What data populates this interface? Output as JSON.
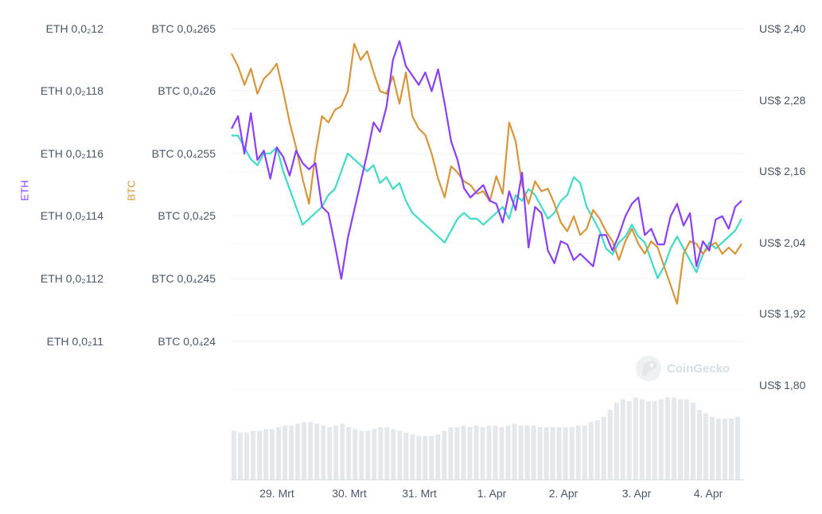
{
  "watermark": "CoinGecko",
  "colors": {
    "eth": "#8a3ffc",
    "btc": "#d9953a",
    "usd": "#3ddbc8",
    "grid": "#eef0f3",
    "volume": "#e4e7eb"
  },
  "chart_data": {
    "type": "line",
    "title": "",
    "axes": {
      "eth": {
        "name": "ETH",
        "ticks": [
          "ETH 0,0₂12",
          "ETH 0,0₂118",
          "ETH 0,0₂116",
          "ETH 0,0₂114",
          "ETH 0,0₂112",
          "ETH 0,0₂11"
        ],
        "ylim": [
          0.0011,
          0.0012
        ]
      },
      "btc": {
        "name": "BTC",
        "ticks": [
          "BTC 0,0₄265",
          "BTC 0,0₄26",
          "BTC 0,0₄255",
          "BTC 0,0₄25",
          "BTC 0,0₄245",
          "BTC 0,0₄24"
        ],
        "ylim": [
          2.4e-05,
          2.65e-05
        ]
      },
      "usd": {
        "ticks": [
          "US$ 2,40",
          "US$ 2,28",
          "US$ 2,16",
          "US$ 2,04",
          "US$ 1,92",
          "US$ 1,80"
        ],
        "ylim": [
          1.8,
          2.4
        ]
      }
    },
    "x_ticks": [
      "29. Mrt",
      "30. Mrt",
      "31. Mrt",
      "1. Apr",
      "2. Apr",
      "3. Apr",
      "4. Apr"
    ],
    "series": [
      {
        "name": "ETH",
        "axis": "eth",
        "values": [
          0.001168,
          0.001172,
          0.00116,
          0.001173,
          0.001158,
          0.001161,
          0.001152,
          0.001162,
          0.001159,
          0.001153,
          0.001161,
          0.001157,
          0.001155,
          0.001157,
          0.001143,
          0.001141,
          0.001131,
          0.00112,
          0.001133,
          0.001142,
          0.001151,
          0.00116,
          0.00117,
          0.001167,
          0.001175,
          0.00119,
          0.001196,
          0.001188,
          0.001185,
          0.001182,
          0.001186,
          0.00118,
          0.001187,
          0.001176,
          0.001164,
          0.001158,
          0.001149,
          0.001146,
          0.001148,
          0.00115,
          0.001145,
          0.001144,
          0.001138,
          0.001148,
          0.001142,
          0.001154,
          0.00113,
          0.001143,
          0.001141,
          0.001129,
          0.001125,
          0.001132,
          0.001131,
          0.001126,
          0.001128,
          0.001126,
          0.001124,
          0.001134,
          0.001134,
          0.001129,
          0.001134,
          0.00114,
          0.001144,
          0.001146,
          0.001134,
          0.001136,
          0.001131,
          0.001131,
          0.00114,
          0.001144,
          0.001137,
          0.001141,
          0.001124,
          0.001132,
          0.001129,
          0.001139,
          0.00114,
          0.001136,
          0.001143,
          0.001145
        ]
      },
      {
        "name": "BTC",
        "axis": "btc",
        "values": [
          2.63e-05,
          2.62e-05,
          2.605e-05,
          2.618e-05,
          2.598e-05,
          2.61e-05,
          2.615e-05,
          2.622e-05,
          2.6e-05,
          2.575e-05,
          2.555e-05,
          2.53e-05,
          2.51e-05,
          2.55e-05,
          2.58e-05,
          2.575e-05,
          2.585e-05,
          2.588e-05,
          2.6e-05,
          2.638e-05,
          2.625e-05,
          2.632e-05,
          2.615e-05,
          2.6e-05,
          2.598e-05,
          2.612e-05,
          2.59e-05,
          2.615e-05,
          2.58e-05,
          2.57e-05,
          2.565e-05,
          2.55e-05,
          2.53e-05,
          2.515e-05,
          2.54e-05,
          2.535e-05,
          2.528e-05,
          2.525e-05,
          2.518e-05,
          2.52e-05,
          2.512e-05,
          2.532e-05,
          2.518e-05,
          2.575e-05,
          2.56e-05,
          2.525e-05,
          2.51e-05,
          2.528e-05,
          2.52e-05,
          2.522e-05,
          2.51e-05,
          2.495e-05,
          2.488e-05,
          2.5e-05,
          2.485e-05,
          2.49e-05,
          2.505e-05,
          2.498e-05,
          2.488e-05,
          2.48e-05,
          2.465e-05,
          2.48e-05,
          2.49e-05,
          2.478e-05,
          2.47e-05,
          2.48e-05,
          2.475e-05,
          2.46e-05,
          2.445e-05,
          2.43e-05,
          2.47e-05,
          2.48e-05,
          2.478e-05,
          2.47e-05,
          2.476e-05,
          2.479e-05,
          2.47e-05,
          2.475e-05,
          2.47e-05,
          2.478e-05
        ]
      },
      {
        "name": "USD",
        "axis": "usd",
        "values": [
          2.22,
          2.22,
          2.2,
          2.18,
          2.17,
          2.19,
          2.19,
          2.2,
          2.16,
          2.13,
          2.1,
          2.07,
          2.08,
          2.09,
          2.1,
          2.12,
          2.13,
          2.16,
          2.19,
          2.18,
          2.17,
          2.16,
          2.17,
          2.14,
          2.15,
          2.13,
          2.14,
          2.11,
          2.09,
          2.08,
          2.07,
          2.06,
          2.05,
          2.04,
          2.06,
          2.08,
          2.09,
          2.08,
          2.08,
          2.07,
          2.08,
          2.09,
          2.1,
          2.08,
          2.12,
          2.11,
          2.13,
          2.12,
          2.1,
          2.08,
          2.09,
          2.11,
          2.12,
          2.15,
          2.14,
          2.1,
          2.08,
          2.06,
          2.03,
          2.02,
          2.04,
          2.05,
          2.07,
          2.05,
          2.04,
          2.01,
          1.98,
          2.0,
          2.03,
          2.05,
          2.03,
          2.01,
          1.99,
          2.02,
          2.04,
          2.03,
          2.04,
          2.05,
          2.06,
          2.08
        ]
      }
    ],
    "volume": [
      28,
      27,
      27,
      28,
      28,
      29,
      29,
      30,
      31,
      31,
      32,
      33,
      33,
      32,
      31,
      30,
      31,
      32,
      30,
      29,
      28,
      28,
      29,
      30,
      30,
      29,
      28,
      27,
      26,
      25,
      25,
      25,
      26,
      28,
      30,
      30,
      31,
      30,
      31,
      30,
      31,
      31,
      30,
      31,
      32,
      31,
      31,
      31,
      30,
      30,
      30,
      30,
      30,
      30,
      31,
      31,
      33,
      34,
      36,
      40,
      44,
      46,
      45,
      47,
      46,
      45,
      45,
      46,
      47,
      47,
      46,
      46,
      44,
      40,
      38,
      36,
      35,
      35,
      35,
      36
    ]
  }
}
